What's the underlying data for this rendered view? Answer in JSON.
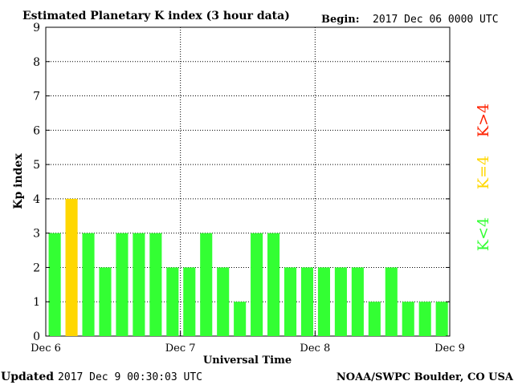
{
  "header": {
    "title": "Estimated Planetary K index (3 hour data)",
    "begin_label": "Begin:",
    "begin_value": "2017 Dec 06 0000 UTC"
  },
  "footer": {
    "updated_label": "Updated",
    "updated_value": "2017 Dec  9 00:30:03 UTC",
    "credit": "NOAA/SWPC Boulder, CO USA"
  },
  "legend": {
    "above": "K>4",
    "equal": "K=4",
    "below": "K<4"
  },
  "colors": {
    "below": "#33ff33",
    "equal": "#ffd700",
    "above": "#ff2200",
    "grid": "#000000",
    "frame": "#000000"
  },
  "chart_data": {
    "type": "bar",
    "title": "Estimated Planetary K index (3 hour data)",
    "xlabel": "Universal Time",
    "ylabel": "Kp index",
    "ylim": [
      0,
      9
    ],
    "yticks": [
      "0",
      "1",
      "2",
      "3",
      "4",
      "5",
      "6",
      "7",
      "8",
      "9"
    ],
    "xticks": [
      "Dec 6",
      "Dec 7",
      "Dec 8",
      "Dec 9"
    ],
    "grid": true,
    "bars_per_day": 8,
    "values": [
      3,
      4,
      3,
      2,
      3,
      3,
      3,
      2,
      2,
      3,
      2,
      1,
      3,
      3,
      2,
      2,
      2,
      2,
      2,
      1,
      2,
      1,
      1,
      1
    ]
  }
}
